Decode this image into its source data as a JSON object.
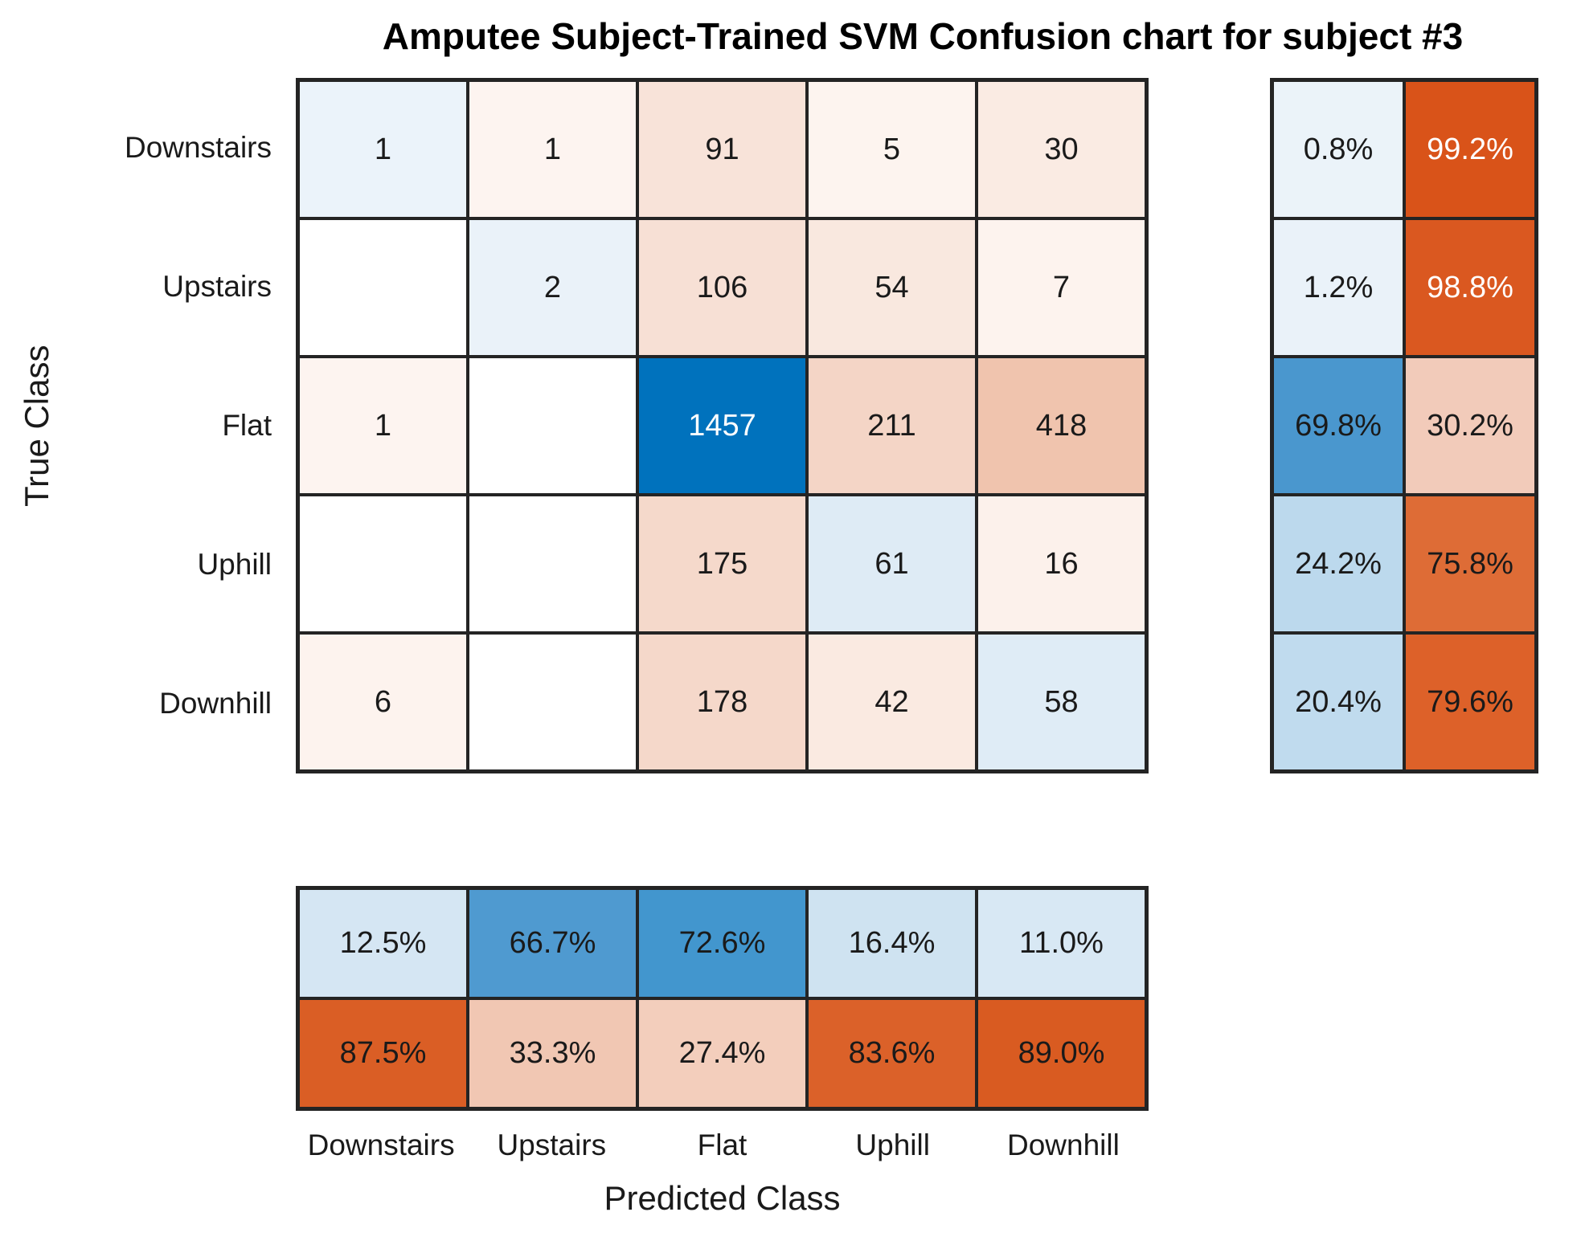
{
  "title": "Amputee Subject-Trained SVM Confusion chart for subject #3",
  "x_axis_label": "Predicted Class",
  "y_axis_label": "True Class",
  "row_labels": [
    "Downstairs",
    "Upstairs",
    "Flat",
    "Uphill",
    "Downhill"
  ],
  "col_labels": [
    "Downstairs",
    "Upstairs",
    "Flat",
    "Uphill",
    "Downhill"
  ],
  "colors": {
    "diagonal_base": "#0072BD",
    "off_diagonal_base": "#D95319",
    "grid_line": "#242424",
    "text_dark": "#1a1a1a",
    "text_light": "#ffffff",
    "background": "#ffffff"
  },
  "chart_data": {
    "type": "heatmap",
    "title": "Amputee Subject-Trained SVM Confusion chart for subject #3",
    "xlabel": "Predicted Class",
    "ylabel": "True Class",
    "categories": [
      "Downstairs",
      "Upstairs",
      "Flat",
      "Uphill",
      "Downhill"
    ],
    "matrix": [
      [
        1,
        1,
        91,
        5,
        30
      ],
      [
        0,
        2,
        106,
        54,
        7
      ],
      [
        1,
        0,
        1457,
        211,
        418
      ],
      [
        0,
        0,
        175,
        61,
        16
      ],
      [
        6,
        0,
        178,
        42,
        58
      ]
    ],
    "row_summary_percent": [
      [
        0.8,
        99.2
      ],
      [
        1.2,
        98.8
      ],
      [
        69.8,
        30.2
      ],
      [
        24.2,
        75.8
      ],
      [
        20.4,
        79.6
      ]
    ],
    "col_summary_percent": [
      [
        12.5,
        66.7,
        72.6,
        16.4,
        11.0
      ],
      [
        87.5,
        33.3,
        27.4,
        83.6,
        89.0
      ]
    ],
    "legend_position": "none",
    "grid": true
  },
  "matrix_block": {
    "cells": [
      {
        "t": "1",
        "bg": "#EBF3FA"
      },
      {
        "t": "1",
        "bg": "#FDF4F0"
      },
      {
        "t": "91",
        "bg": "#F8E3D9"
      },
      {
        "t": "5",
        "bg": "#FDF4EF"
      },
      {
        "t": "30",
        "bg": "#FAEBE3"
      },
      {
        "t": "",
        "bg": "#FFFFFF"
      },
      {
        "t": "2",
        "bg": "#EAF2F9"
      },
      {
        "t": "106",
        "bg": "#F7E0D5"
      },
      {
        "t": "54",
        "bg": "#F9E8DF"
      },
      {
        "t": "7",
        "bg": "#FDF3EE"
      },
      {
        "t": "1",
        "bg": "#FDF4F0"
      },
      {
        "t": "",
        "bg": "#FFFFFF"
      },
      {
        "t": "1457",
        "bg": "#0072BD",
        "fg": "#ffffff"
      },
      {
        "t": "211",
        "bg": "#F4D5C6"
      },
      {
        "t": "418",
        "bg": "#F0C4AE"
      },
      {
        "t": "",
        "bg": "#FFFFFF"
      },
      {
        "t": "",
        "bg": "#FFFFFF"
      },
      {
        "t": "175",
        "bg": "#F5D9CB"
      },
      {
        "t": "61",
        "bg": "#DEEBF5"
      },
      {
        "t": "16",
        "bg": "#FCF1EB"
      },
      {
        "t": "6",
        "bg": "#FDF3EE"
      },
      {
        "t": "",
        "bg": "#FFFFFF"
      },
      {
        "t": "178",
        "bg": "#F5D8CA"
      },
      {
        "t": "42",
        "bg": "#FAEAE1"
      },
      {
        "t": "58",
        "bg": "#DFECF6"
      }
    ]
  },
  "row_summary_block": {
    "cells": [
      {
        "t": "0.8%",
        "bg": "#EBF3F9"
      },
      {
        "t": "99.2%",
        "bg": "#D95319",
        "fg": "#ffffff"
      },
      {
        "t": "1.2%",
        "bg": "#EAF2F9"
      },
      {
        "t": "98.8%",
        "bg": "#DA5820",
        "fg": "#ffffff"
      },
      {
        "t": "69.8%",
        "bg": "#4A97CE"
      },
      {
        "t": "30.2%",
        "bg": "#F2CBBA"
      },
      {
        "t": "24.2%",
        "bg": "#BCD9ED"
      },
      {
        "t": "75.8%",
        "bg": "#DE6C36"
      },
      {
        "t": "20.4%",
        "bg": "#C0DBEE"
      },
      {
        "t": "79.6%",
        "bg": "#DD6129"
      }
    ]
  },
  "col_summary_block": {
    "cells": [
      {
        "t": "12.5%",
        "bg": "#D5E6F3"
      },
      {
        "t": "66.7%",
        "bg": "#4F9AD0"
      },
      {
        "t": "72.6%",
        "bg": "#4296CE"
      },
      {
        "t": "16.4%",
        "bg": "#CFE3F1"
      },
      {
        "t": "11.0%",
        "bg": "#D8E8F4"
      },
      {
        "t": "87.5%",
        "bg": "#DA5E25"
      },
      {
        "t": "33.3%",
        "bg": "#F1C7B3"
      },
      {
        "t": "27.4%",
        "bg": "#F3CEBC"
      },
      {
        "t": "83.6%",
        "bg": "#DB6129"
      },
      {
        "t": "89.0%",
        "bg": "#D95B21"
      }
    ]
  }
}
